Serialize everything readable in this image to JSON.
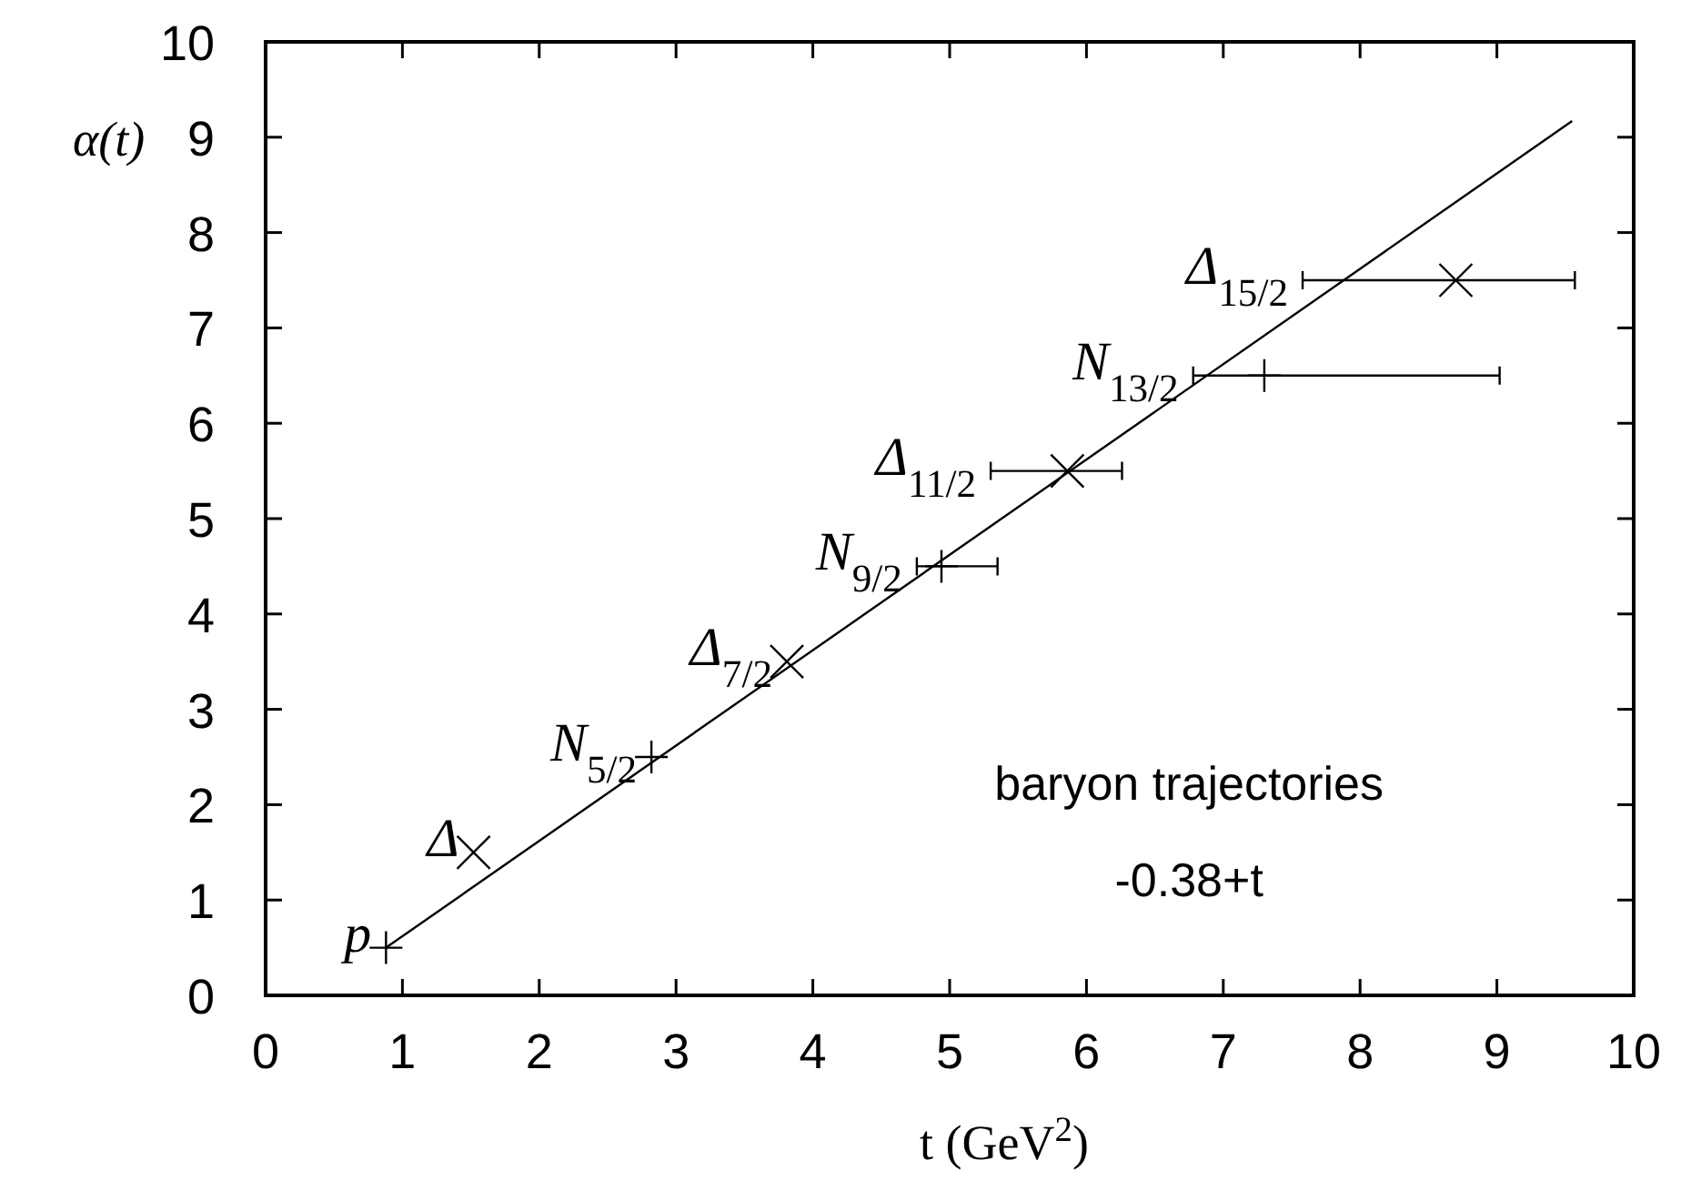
{
  "chart_data": {
    "type": "scatter",
    "xlabel": "t (GeV$^{2}$)",
    "ylabel": "α(t)",
    "xlim": [
      0,
      10
    ],
    "ylim": [
      0,
      10
    ],
    "xticks": [
      0,
      1,
      2,
      3,
      4,
      5,
      6,
      7,
      8,
      9,
      10
    ],
    "yticks": [
      0,
      1,
      2,
      3,
      4,
      5,
      6,
      7,
      8,
      9,
      10
    ],
    "grid": false,
    "series": [
      {
        "marker": "plus",
        "color": "#000000",
        "x": [
          0.88,
          2.82,
          4.94,
          7.3
        ],
        "values": [
          0.5,
          2.5,
          4.5,
          6.5
        ],
        "xerrors": [
          null,
          null,
          [
            4.76,
            5.35
          ],
          [
            6.78,
            9.02
          ]
        ]
      },
      {
        "marker": "cross",
        "color": "#000000",
        "x": [
          1.52,
          3.81,
          5.86,
          8.7
        ],
        "values": [
          1.5,
          3.5,
          5.5,
          7.5
        ],
        "xerrors": [
          null,
          null,
          [
            5.3,
            6.26
          ],
          [
            7.58,
            9.57
          ]
        ]
      },
      {
        "type": "line",
        "color": "#000000",
        "x": [
          0.88,
          9.55
        ],
        "values": [
          0.5,
          9.17
        ]
      }
    ],
    "annotations": [
      {
        "text": "p",
        "x": 0.88,
        "y": 0.5
      },
      {
        "text": "Δ",
        "x": 1.52,
        "y": 1.5
      },
      {
        "text": "N$_{5/2}$",
        "x": 2.82,
        "y": 2.5
      },
      {
        "text": "Δ$_{7/2}$",
        "x": 3.81,
        "y": 3.5
      },
      {
        "text": "N$_{9/2}$",
        "x": 4.76,
        "y": 4.5
      },
      {
        "text": "Δ$_{11/2}$",
        "x": 5.3,
        "y": 5.5
      },
      {
        "text": "N$_{13/2}$",
        "x": 6.78,
        "y": 6.5
      },
      {
        "text": "Δ$_{15/2}$",
        "x": 7.58,
        "y": 7.5
      },
      "baryon trajectories",
      "-0.38+t"
    ]
  }
}
